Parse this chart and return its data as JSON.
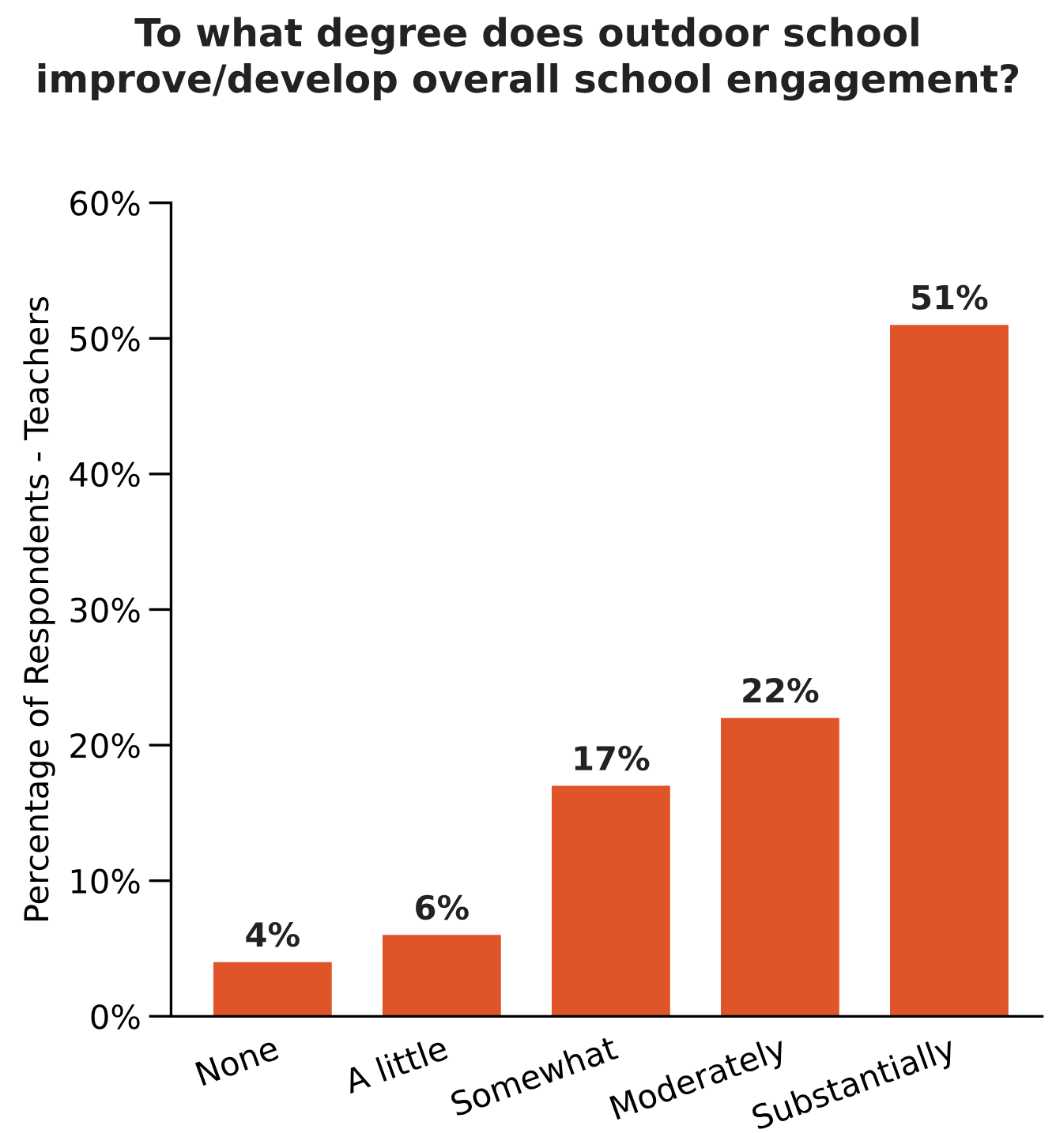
{
  "chart_data": {
    "type": "bar",
    "title": "To what degree does outdoor school\nimprove/develop overall school engagement?",
    "ylabel": "Percentage of Respondents - Teachers",
    "categories": [
      "None",
      "A little",
      "Somewhat",
      "Moderately",
      "Substantially"
    ],
    "values": [
      4,
      6,
      17,
      22,
      51
    ],
    "value_labels": [
      "4%",
      "6%",
      "17%",
      "22%",
      "51%"
    ],
    "color": "#e0542a",
    "ylim": [
      0,
      60
    ],
    "yticks": [
      {
        "value": 0,
        "label": "0%"
      },
      {
        "value": 10,
        "label": "10%"
      },
      {
        "value": 20,
        "label": "20%"
      },
      {
        "value": 30,
        "label": "30%"
      },
      {
        "value": 40,
        "label": "40%"
      },
      {
        "value": 50,
        "label": "50%"
      },
      {
        "value": 60,
        "label": "60%"
      }
    ],
    "grid": false,
    "legend": false
  }
}
